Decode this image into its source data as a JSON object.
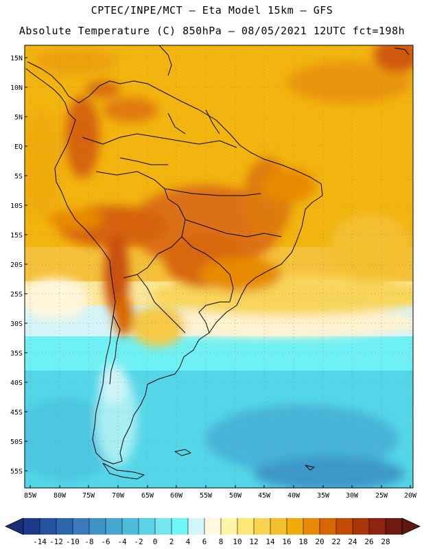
{
  "header": {
    "line1": "CPTEC/INPE/MCT –  Eta Model 15km – GFS",
    "line2": "Absolute Temperature (C) 850hPa – 08/05/2021 12UTC fct=198h"
  },
  "map": {
    "lat_labels": [
      "15N",
      "10N",
      "5N",
      "EQ",
      "5S",
      "10S",
      "15S",
      "20S",
      "25S",
      "30S",
      "35S",
      "40S",
      "45S",
      "50S",
      "55S"
    ],
    "lon_labels": [
      "85W",
      "80W",
      "75W",
      "70W",
      "65W",
      "60W",
      "55W",
      "50W",
      "45W",
      "40W",
      "35W",
      "30W",
      "25W",
      "20W"
    ]
  },
  "colorbar": {
    "labels": [
      "-14",
      "-12",
      "-10",
      "-8",
      "-6",
      "-4",
      "-2",
      "0",
      "2",
      "4",
      "6",
      "8",
      "10",
      "12",
      "14",
      "16",
      "18",
      "20",
      "22",
      "24",
      "26",
      "28"
    ],
    "colors": [
      "#1f3a8a",
      "#25529e",
      "#2e66ad",
      "#3b7bbd",
      "#3f93c7",
      "#46a8d2",
      "#4fbcdc",
      "#5ad3e6",
      "#74e6ef",
      "#6ff7f7",
      "#d2f6f8",
      "#fff8e0",
      "#fef6a6",
      "#fde776",
      "#f8d352",
      "#f3bf2e",
      "#f0ab0b",
      "#e88a06",
      "#d96605",
      "#c44b05",
      "#a93509",
      "#8f230f",
      "#6e1a10"
    ]
  }
}
